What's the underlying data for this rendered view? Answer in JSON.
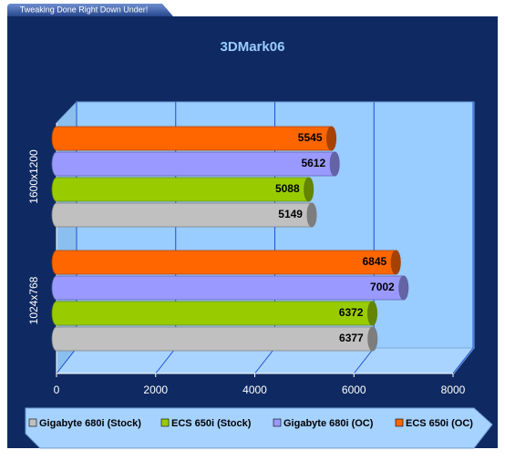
{
  "header": {
    "tagline": "Tweaking Done Right Down Under!"
  },
  "chart_data": {
    "type": "bar",
    "orientation": "horizontal",
    "title": "3DMark06",
    "categories": [
      "1600x1200",
      "1024x768"
    ],
    "series": [
      {
        "name": "Gigabyte 680i (Stock)",
        "color": "#c0c0c0",
        "values": [
          5149,
          6377
        ]
      },
      {
        "name": "ECS 650i (Stock)",
        "color": "#99cc00",
        "values": [
          5088,
          6372
        ]
      },
      {
        "name": "Gigabyte 680i (OC)",
        "color": "#9999ff",
        "values": [
          5612,
          7002
        ]
      },
      {
        "name": "ECS 650i (OC)",
        "color": "#ff6600",
        "values": [
          5545,
          6845
        ]
      }
    ],
    "xlim": [
      0,
      8000
    ],
    "xticks": [
      0,
      2000,
      4000,
      6000,
      8000
    ],
    "grid": true,
    "legend": "bottom"
  }
}
